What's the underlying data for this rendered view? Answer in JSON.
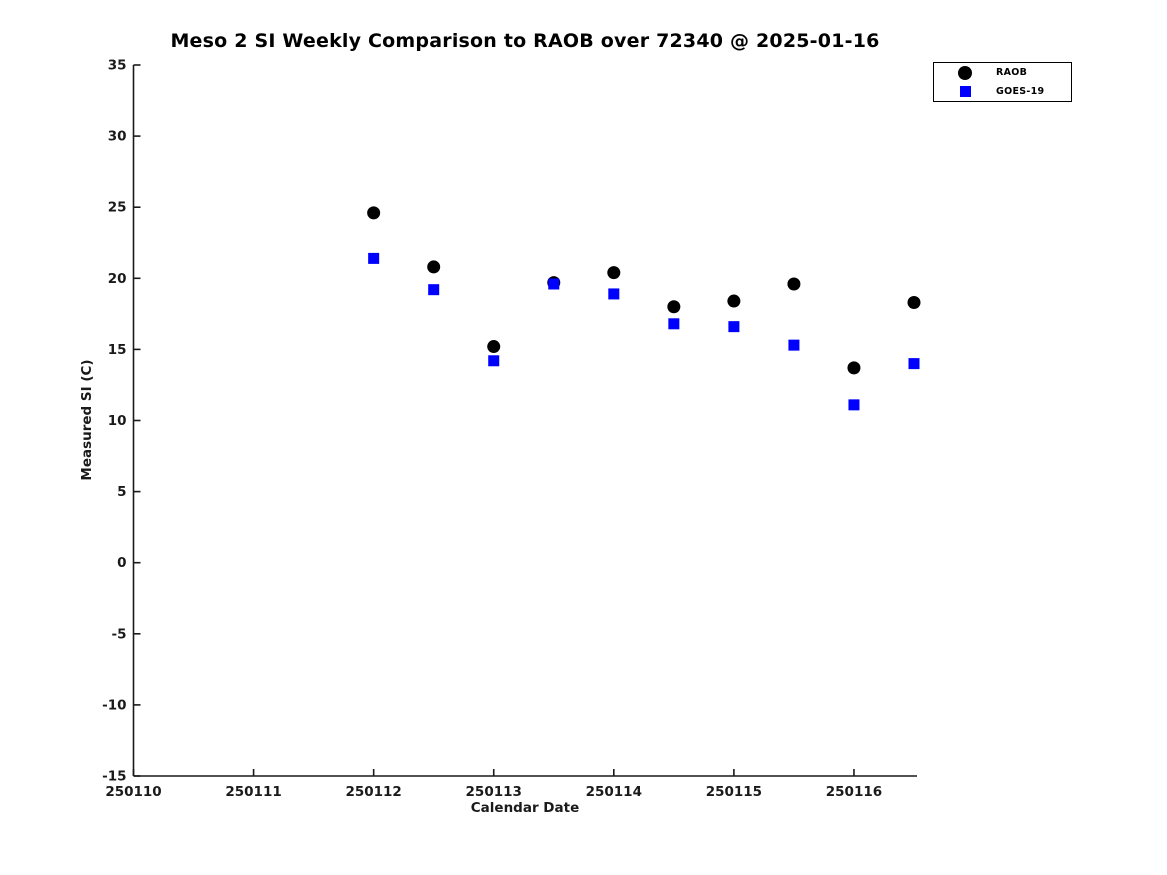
{
  "chart_data": {
    "type": "scatter",
    "title": "Meso 2 SI Weekly Comparison to RAOB over 72340 @ 2025-01-16",
    "xlabel": "Calendar Date",
    "ylabel": "Measured SI (C)",
    "xlim": [
      250110,
      250116.525
    ],
    "ylim": [
      -15,
      35
    ],
    "x_ticks": [
      250110,
      250111,
      250112,
      250113,
      250114,
      250115,
      250116
    ],
    "y_ticks": [
      -15,
      -10,
      -5,
      0,
      5,
      10,
      15,
      20,
      25,
      30,
      35
    ],
    "grid": false,
    "legend_position": "top-right-outside",
    "x": [
      250112.0,
      250112.5,
      250113.0,
      250113.5,
      250114.0,
      250114.5,
      250115.0,
      250115.5,
      250116.0,
      250116.5
    ],
    "series": [
      {
        "name": "RAOB",
        "marker": "circle",
        "color": "#000000",
        "values": [
          24.6,
          20.8,
          15.2,
          19.7,
          20.4,
          18.0,
          18.4,
          19.6,
          13.7,
          18.3
        ]
      },
      {
        "name": "GOES-19",
        "marker": "square",
        "color": "#0000ff",
        "values": [
          21.4,
          19.2,
          14.2,
          19.6,
          18.9,
          16.8,
          16.6,
          15.3,
          11.1,
          14.0
        ]
      }
    ]
  }
}
